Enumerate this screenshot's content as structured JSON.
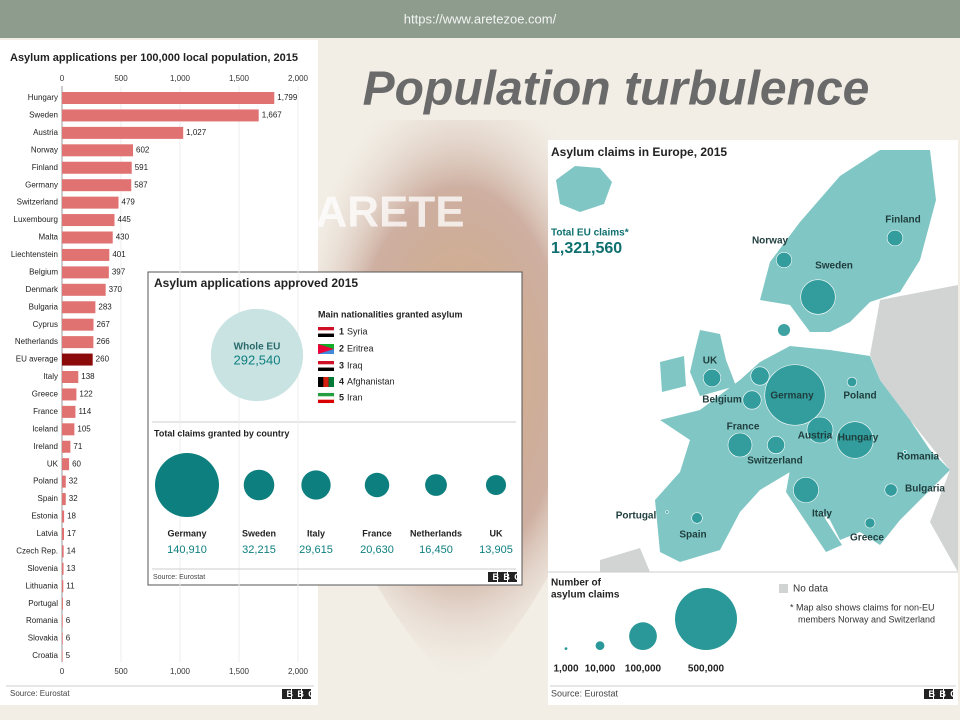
{
  "header": {
    "url": "https://www.aretezoe.com/",
    "title": "Population turbulence",
    "watermark": "ARETE"
  },
  "chart_data": [
    {
      "type": "bar",
      "orientation": "horizontal",
      "title": "Asylum applications per 100,000 local population, 2015",
      "categories": [
        "Hungary",
        "Sweden",
        "Austria",
        "Norway",
        "Finland",
        "Germany",
        "Switzerland",
        "Luxembourg",
        "Malta",
        "Liechtenstein",
        "Belgium",
        "Denmark",
        "Bulgaria",
        "Cyprus",
        "Netherlands",
        "EU average",
        "Italy",
        "Greece",
        "France",
        "Iceland",
        "Ireland",
        "UK",
        "Poland",
        "Spain",
        "Estonia",
        "Latvia",
        "Czech Rep.",
        "Slovenia",
        "Lithuania",
        "Portugal",
        "Romania",
        "Slovakia",
        "Croatia"
      ],
      "values": [
        1799,
        1667,
        1027,
        602,
        591,
        587,
        479,
        445,
        430,
        401,
        397,
        370,
        283,
        267,
        266,
        260,
        138,
        122,
        114,
        105,
        71,
        60,
        32,
        32,
        18,
        17,
        14,
        13,
        11,
        8,
        6,
        6,
        5
      ],
      "value_labels": [
        "1,799",
        "1,667",
        "1,027",
        "602",
        "591",
        "587",
        "479",
        "445",
        "430",
        "401",
        "397",
        "370",
        "283",
        "267",
        "266",
        "260",
        "138",
        "122",
        "114",
        "105",
        "71",
        "60",
        "32",
        "32",
        "18",
        "17",
        "14",
        "13",
        "11",
        "8",
        "6",
        "6",
        "5"
      ],
      "colors": [
        "#e07272",
        "#e07272",
        "#e07272",
        "#e07272",
        "#e07272",
        "#e07272",
        "#e07272",
        "#e07272",
        "#e07272",
        "#e07272",
        "#e07272",
        "#e07272",
        "#e07272",
        "#e07272",
        "#e07272",
        "#8b0a0a",
        "#e07272",
        "#e07272",
        "#e07272",
        "#e07272",
        "#e07272",
        "#e07272",
        "#e07272",
        "#e07272",
        "#e07272",
        "#e07272",
        "#e07272",
        "#e07272",
        "#e07272",
        "#e07272",
        "#e07272",
        "#e07272",
        "#e07272"
      ],
      "xlim": [
        0,
        2000
      ],
      "xticks": [
        0,
        500,
        {
          "value": 1000,
          "label": "1,000"
        },
        {
          "value": 1500,
          "label": "1,500"
        },
        {
          "value": 2000,
          "label": "2,000"
        }
      ],
      "source": "Source: Eurostat",
      "logo": "BBC"
    },
    {
      "type": "bubble",
      "title": "Asylum applications approved 2015",
      "whole_label": "Whole EU",
      "whole_value": 292540,
      "whole_value_label": "292,540",
      "whole_color": "#c9e3e3",
      "nationalities_title": "Main nationalities granted asylum",
      "nationalities": [
        {
          "rank": 1,
          "name": "Syria"
        },
        {
          "rank": 2,
          "name": "Eritrea"
        },
        {
          "rank": 3,
          "name": "Iraq"
        },
        {
          "rank": 4,
          "name": "Afghanistan"
        },
        {
          "rank": 5,
          "name": "Iran"
        }
      ],
      "subtitle": "Total claims granted by country",
      "categories": [
        "Germany",
        "Sweden",
        "Italy",
        "France",
        "Netherlands",
        "UK"
      ],
      "values": [
        140910,
        32215,
        29615,
        20630,
        16450,
        13905
      ],
      "value_labels": [
        "140,910",
        "32,215",
        "29,615",
        "20,630",
        "16,450",
        "13,905"
      ],
      "color": "#0e7f7f",
      "source": "Source: Eurostat",
      "logo": "BBC"
    },
    {
      "type": "bubble-map",
      "title": "Asylum claims in Europe, 2015",
      "total_label": "Total EU claims*",
      "total_value": 1321560,
      "total_value_label": "1,321,560",
      "categories": [
        "Finland",
        "Norway",
        "Sweden",
        "UK",
        "Belgium",
        "Germany",
        "Poland",
        "France",
        "Austria",
        "Hungary",
        "Switzerland",
        "Romania",
        "Bulgaria",
        "Italy",
        "Portugal",
        "Spain",
        "Greece",
        null,
        null
      ],
      "values": [
        32000,
        31000,
        156000,
        40000,
        44000,
        476000,
        12000,
        75000,
        88000,
        174000,
        39000,
        1200,
        20000,
        83000,
        900,
        15000,
        13000,
        44000,
        21000
      ],
      "color": "#2a9898",
      "legend_title_lines": [
        "Number of",
        "asylum claims"
      ],
      "legend_sizes": [
        {
          "value": 1000,
          "label": "1,000"
        },
        {
          "value": 10000,
          "label": "10,000"
        },
        {
          "value": 100000,
          "label": "100,000"
        },
        {
          "value": 500000,
          "label": "500,000"
        }
      ],
      "no_data_label": "No data",
      "note_lines": [
        "* Map also shows claims for non-EU",
        "members Norway and Switzerland"
      ],
      "source": "Source: Eurostat",
      "logo": "BBC"
    }
  ]
}
